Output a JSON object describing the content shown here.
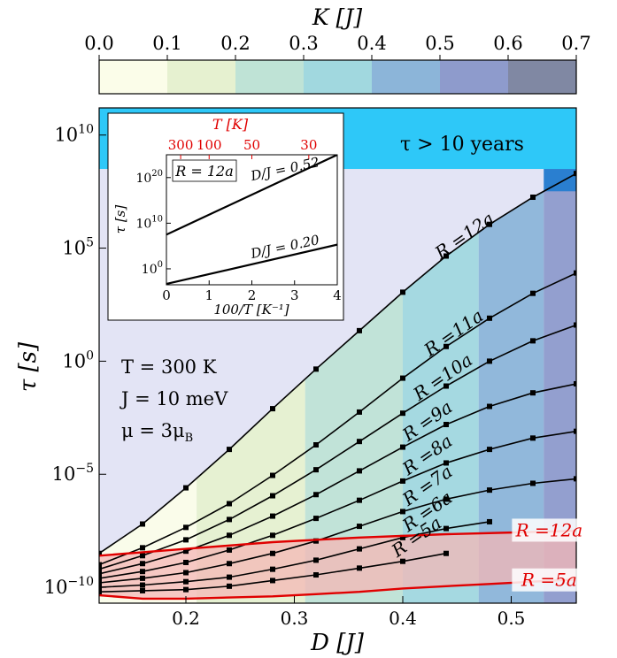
{
  "chart_data": {
    "type": "line",
    "title": "",
    "xlabel": "D [J]",
    "ylabel": "τ [s]",
    "log_y": true,
    "xlim": [
      0.12,
      0.56
    ],
    "ylim_log10": [
      -10.7,
      11.2
    ],
    "x_ticks": [
      {
        "value": 0.2,
        "label": "0.2"
      },
      {
        "value": 0.3,
        "label": "0.3"
      },
      {
        "value": 0.4,
        "label": "0.4"
      },
      {
        "value": 0.5,
        "label": "0.5"
      }
    ],
    "y_ticks": [
      {
        "value": -10,
        "base": "10",
        "exp": "−10"
      },
      {
        "value": -5,
        "base": "10",
        "exp": "−5"
      },
      {
        "value": 0,
        "base": "10",
        "exp": "0"
      },
      {
        "value": 5,
        "base": "10",
        "exp": "5"
      },
      {
        "value": 10,
        "base": "10",
        "exp": "10"
      }
    ],
    "colorbar": {
      "label": "K [J]",
      "ticks": [
        "0.0",
        "0.1",
        "0.2",
        "0.3",
        "0.4",
        "0.5",
        "0.6",
        "0.7"
      ],
      "colors": [
        "#fbfde9",
        "#e6f1d0",
        "#bfe3d6",
        "#a1d8df",
        "#8cb5d9",
        "#8e9bcc",
        "#8088a3"
      ]
    },
    "bands": {
      "D_edges": [
        0.12,
        0.21,
        0.31,
        0.4,
        0.47,
        0.53,
        0.56
      ],
      "colors": [
        "#fbfde9",
        "#e6f1d0",
        "#bfe3d6",
        "#a1d8df",
        "#8cb5d9",
        "#8e9bcc"
      ]
    },
    "threshold": {
      "label": "τ > 10 years",
      "log10": 8.5,
      "color": "#2ec8f8"
    },
    "background_color": "#e3e4f5",
    "thermal_region_color": "#f4b7b5",
    "series": [
      {
        "name": "R = 5a",
        "label_text": "R =5a",
        "label_x": 0.39,
        "x": [
          0.12,
          0.16,
          0.2,
          0.24,
          0.28,
          0.32,
          0.36,
          0.4,
          0.44
        ],
        "log10_tau": [
          -10.2,
          -10.15,
          -10.1,
          -9.95,
          -9.7,
          -9.45,
          -9.15,
          -8.85,
          -8.5
        ]
      },
      {
        "name": "R = 6a",
        "label_text": "R =6a",
        "label_x": 0.4,
        "x": [
          0.12,
          0.16,
          0.2,
          0.24,
          0.28,
          0.32,
          0.36,
          0.4,
          0.44,
          0.48
        ],
        "log10_tau": [
          -10.0,
          -9.9,
          -9.75,
          -9.55,
          -9.2,
          -8.8,
          -8.3,
          -7.8,
          -7.4,
          -7.1
        ]
      },
      {
        "name": "R = 7a",
        "label_text": "R =7a",
        "label_x": 0.4,
        "x": [
          0.12,
          0.16,
          0.2,
          0.24,
          0.28,
          0.32,
          0.36,
          0.4,
          0.44,
          0.48,
          0.52,
          0.56
        ],
        "log10_tau": [
          -9.8,
          -9.6,
          -9.35,
          -8.95,
          -8.5,
          -7.95,
          -7.3,
          -6.65,
          -6.1,
          -5.7,
          -5.4,
          -5.2
        ]
      },
      {
        "name": "R = 8a",
        "label_text": "R =8a",
        "label_x": 0.4,
        "x": [
          0.12,
          0.16,
          0.2,
          0.24,
          0.28,
          0.32,
          0.36,
          0.4,
          0.44,
          0.48,
          0.52,
          0.56
        ],
        "log10_tau": [
          -9.6,
          -9.3,
          -8.9,
          -8.35,
          -7.7,
          -6.95,
          -6.15,
          -5.3,
          -4.5,
          -3.9,
          -3.4,
          -3.1
        ]
      },
      {
        "name": "R = 9a",
        "label_text": "R =9a",
        "label_x": 0.4,
        "x": [
          0.12,
          0.16,
          0.2,
          0.24,
          0.28,
          0.32,
          0.36,
          0.4,
          0.44,
          0.48,
          0.52,
          0.56
        ],
        "log10_tau": [
          -9.4,
          -8.95,
          -8.4,
          -7.7,
          -6.85,
          -5.9,
          -4.85,
          -3.8,
          -2.8,
          -2.0,
          -1.4,
          -1.0
        ]
      },
      {
        "name": "R = 10a",
        "label_text": "R =10a",
        "label_x": 0.41,
        "x": [
          0.12,
          0.16,
          0.2,
          0.24,
          0.28,
          0.32,
          0.36,
          0.4,
          0.44,
          0.48,
          0.52,
          0.56
        ],
        "log10_tau": [
          -9.2,
          -8.6,
          -7.9,
          -7.0,
          -5.95,
          -4.8,
          -3.55,
          -2.3,
          -1.1,
          0.0,
          0.9,
          1.6
        ]
      },
      {
        "name": "R = 11a",
        "label_text": "R =11a",
        "label_x": 0.42,
        "x": [
          0.12,
          0.16,
          0.2,
          0.24,
          0.28,
          0.32,
          0.36,
          0.4,
          0.44,
          0.48,
          0.52,
          0.56
        ],
        "log10_tau": [
          -9.0,
          -8.25,
          -7.35,
          -6.3,
          -5.05,
          -3.7,
          -2.25,
          -0.75,
          0.65,
          1.9,
          3.0,
          3.9
        ]
      },
      {
        "name": "R = 12a",
        "label_text": "R =12a",
        "label_x": 0.43,
        "x": [
          0.12,
          0.16,
          0.2,
          0.24,
          0.28,
          0.32,
          0.36,
          0.4,
          0.44,
          0.48,
          0.52,
          0.56
        ],
        "log10_tau": [
          -8.5,
          -7.2,
          -5.6,
          -3.9,
          -2.1,
          -0.35,
          1.35,
          3.05,
          4.65,
          6.05,
          7.25,
          8.3
        ]
      }
    ],
    "red_series": [
      {
        "name": "R = 12a",
        "label_text": "R =12a",
        "x": [
          0.12,
          0.2,
          0.28,
          0.36,
          0.44,
          0.52,
          0.56
        ],
        "log10_tau": [
          -8.6,
          -8.3,
          -8.0,
          -7.8,
          -7.65,
          -7.55,
          -7.5
        ]
      },
      {
        "name": "R = 5a",
        "label_text": "R =5a",
        "x": [
          0.12,
          0.16,
          0.2,
          0.24,
          0.28,
          0.32,
          0.36,
          0.4,
          0.44,
          0.48,
          0.52,
          0.56
        ],
        "log10_tau": [
          -10.35,
          -10.5,
          -10.5,
          -10.45,
          -10.4,
          -10.3,
          -10.2,
          -10.05,
          -9.95,
          -9.85,
          -9.75,
          -9.65
        ]
      }
    ],
    "annotations": {
      "temperature": "T = 300 K",
      "exchange": "J = 10 meV",
      "moment_prefix": "μ = 3μ",
      "moment_sub": "B"
    },
    "inset": {
      "xlabel": "100/T [K⁻¹]",
      "ylabel": "τ [s]",
      "top_axis_label": "T [K]",
      "top_ticks": [
        {
          "T": 300,
          "label": "300"
        },
        {
          "T": 100,
          "label": "100"
        },
        {
          "T": 50,
          "label": "50"
        },
        {
          "T": 30,
          "label": "30"
        }
      ],
      "x_ticks": [
        0,
        1,
        2,
        3,
        4
      ],
      "y_ticks": [
        {
          "value": 0,
          "label": "0"
        },
        {
          "value": 10,
          "label": "10"
        },
        {
          "value": 20,
          "label": "20"
        }
      ],
      "xlim": [
        0,
        4
      ],
      "ylim_log10": [
        -3.5,
        25
      ],
      "badge": "R = 12a",
      "lines": [
        {
          "label": "D/J = 0.52",
          "x": [
            0,
            4
          ],
          "log10_tau": [
            7.5,
            25.0
          ]
        },
        {
          "label": "D/J = 0.20",
          "x": [
            0,
            4
          ],
          "log10_tau": [
            -3.3,
            5.3
          ]
        }
      ]
    }
  }
}
